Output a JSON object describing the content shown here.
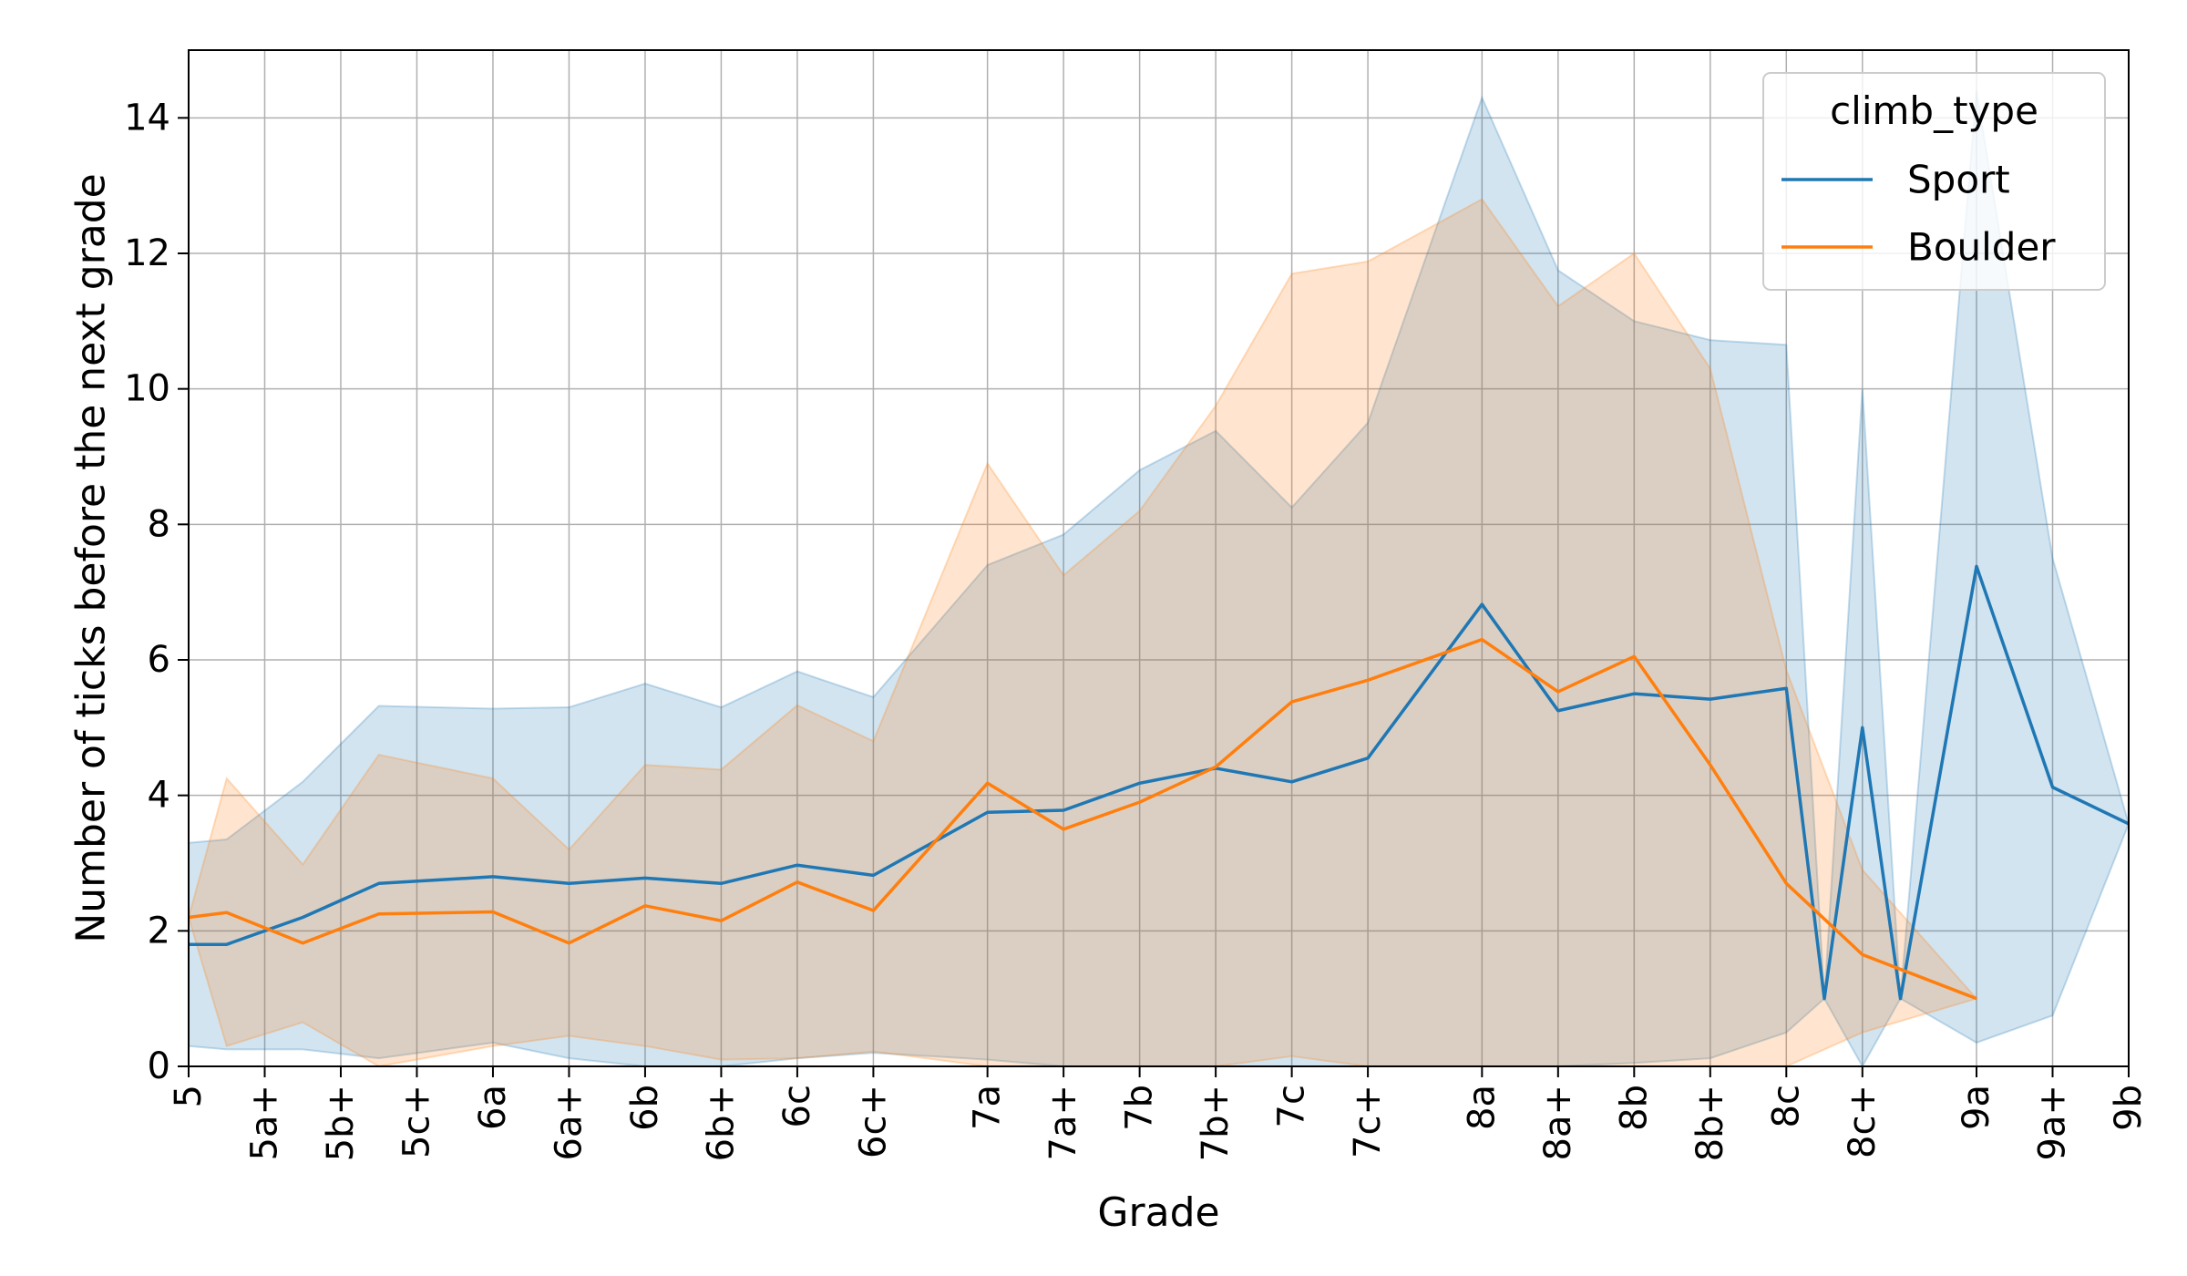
{
  "chart_data": {
    "type": "line",
    "xlabel": "Grade",
    "ylabel": "Number of ticks before the next grade",
    "ylim": [
      0,
      15
    ],
    "y_ticks": [
      0,
      2,
      4,
      6,
      8,
      10,
      12,
      14
    ],
    "grid": true,
    "legend": {
      "title": "climb_type",
      "position": "top-right"
    },
    "x_tick_labels": [
      "5",
      "5a+",
      "5b+",
      "5c+",
      "6a",
      "6a+",
      "6b",
      "6b+",
      "6c",
      "6c+",
      "7a",
      "7a+",
      "7b",
      "7b+",
      "7c",
      "7c+",
      "8a",
      "8a+",
      "8b",
      "8b+",
      "8c",
      "8c+",
      "9a",
      "9a+",
      "9b"
    ],
    "x_tick_values": [
      0,
      1,
      2,
      3,
      4,
      5,
      6,
      7,
      8,
      9,
      10.5,
      11.5,
      12.5,
      13.5,
      14.5,
      15.5,
      17,
      18,
      19,
      20,
      21,
      22,
      23.5,
      24.5,
      25.5
    ],
    "xlim": [
      0,
      25.5
    ],
    "series": [
      {
        "name": "Sport",
        "color": "#1f77b4",
        "band_color": "#1f77b4",
        "points": [
          {
            "x": 0,
            "y": 1.8,
            "lo": 0.3,
            "hi": 3.3
          },
          {
            "x": 0.5,
            "y": 1.8,
            "lo": 0.25,
            "hi": 3.35
          },
          {
            "x": 1.5,
            "y": 2.2,
            "lo": 0.25,
            "hi": 4.2
          },
          {
            "x": 2.5,
            "y": 2.7,
            "lo": 0.12,
            "hi": 5.32
          },
          {
            "x": 4,
            "y": 2.8,
            "lo": 0.35,
            "hi": 5.28
          },
          {
            "x": 5,
            "y": 2.7,
            "lo": 0.12,
            "hi": 5.3
          },
          {
            "x": 6,
            "y": 2.78,
            "lo": 0.0,
            "hi": 5.65
          },
          {
            "x": 7,
            "y": 2.7,
            "lo": 0.0,
            "hi": 5.3
          },
          {
            "x": 8,
            "y": 2.97,
            "lo": 0.12,
            "hi": 5.83
          },
          {
            "x": 9,
            "y": 2.82,
            "lo": 0.2,
            "hi": 5.45
          },
          {
            "x": 10.5,
            "y": 3.75,
            "lo": 0.1,
            "hi": 7.4
          },
          {
            "x": 11.5,
            "y": 3.78,
            "lo": 0.0,
            "hi": 7.85
          },
          {
            "x": 12.5,
            "y": 4.18,
            "lo": 0.0,
            "hi": 8.8
          },
          {
            "x": 13.5,
            "y": 4.4,
            "lo": 0.0,
            "hi": 9.38
          },
          {
            "x": 14.5,
            "y": 4.2,
            "lo": 0.0,
            "hi": 8.25
          },
          {
            "x": 15.5,
            "y": 4.55,
            "lo": 0.0,
            "hi": 9.5
          },
          {
            "x": 17,
            "y": 6.82,
            "lo": 0.0,
            "hi": 14.3
          },
          {
            "x": 18,
            "y": 5.25,
            "lo": 0.0,
            "hi": 11.75
          },
          {
            "x": 19,
            "y": 5.5,
            "lo": 0.05,
            "hi": 11.0
          },
          {
            "x": 20,
            "y": 5.42,
            "lo": 0.12,
            "hi": 10.72
          },
          {
            "x": 21,
            "y": 5.58,
            "lo": 0.5,
            "hi": 10.65
          },
          {
            "x": 21.5,
            "y": 1.0,
            "lo": 1.0,
            "hi": 1.0
          },
          {
            "x": 22,
            "y": 5.0,
            "lo": 0.0,
            "hi": 10.0
          },
          {
            "x": 22.5,
            "y": 1.0,
            "lo": 1.0,
            "hi": 1.0
          },
          {
            "x": 23.5,
            "y": 7.38,
            "lo": 0.35,
            "hi": 14.4
          },
          {
            "x": 24.5,
            "y": 4.12,
            "lo": 0.75,
            "hi": 7.5
          },
          {
            "x": 25.5,
            "y": 3.58,
            "lo": 3.58,
            "hi": 3.58
          }
        ]
      },
      {
        "name": "Boulder",
        "color": "#ff7f0e",
        "band_color": "#ff7f0e",
        "points": [
          {
            "x": 0,
            "y": 2.2,
            "lo": 2.2,
            "hi": 2.2
          },
          {
            "x": 0.5,
            "y": 2.27,
            "lo": 0.3,
            "hi": 4.25
          },
          {
            "x": 1.5,
            "y": 1.82,
            "lo": 0.65,
            "hi": 2.98
          },
          {
            "x": 2.5,
            "y": 2.25,
            "lo": 0.0,
            "hi": 4.6
          },
          {
            "x": 4,
            "y": 2.28,
            "lo": 0.3,
            "hi": 4.25
          },
          {
            "x": 5,
            "y": 1.82,
            "lo": 0.45,
            "hi": 3.2
          },
          {
            "x": 6,
            "y": 2.37,
            "lo": 0.3,
            "hi": 4.45
          },
          {
            "x": 7,
            "y": 2.15,
            "lo": 0.1,
            "hi": 4.38
          },
          {
            "x": 8,
            "y": 2.72,
            "lo": 0.12,
            "hi": 5.33
          },
          {
            "x": 9,
            "y": 2.3,
            "lo": 0.22,
            "hi": 4.8
          },
          {
            "x": 10.5,
            "y": 4.18,
            "lo": 0.0,
            "hi": 8.9
          },
          {
            "x": 11.5,
            "y": 3.5,
            "lo": 0.0,
            "hi": 7.25
          },
          {
            "x": 12.5,
            "y": 3.9,
            "lo": 0.0,
            "hi": 8.2
          },
          {
            "x": 13.5,
            "y": 4.42,
            "lo": 0.0,
            "hi": 9.75
          },
          {
            "x": 14.5,
            "y": 5.38,
            "lo": 0.15,
            "hi": 11.7
          },
          {
            "x": 15.5,
            "y": 5.7,
            "lo": 0.0,
            "hi": 11.88
          },
          {
            "x": 17,
            "y": 6.3,
            "lo": 0.0,
            "hi": 12.8
          },
          {
            "x": 18,
            "y": 5.53,
            "lo": 0.0,
            "hi": 11.22
          },
          {
            "x": 19,
            "y": 6.05,
            "lo": 0.0,
            "hi": 12.0
          },
          {
            "x": 20,
            "y": 4.45,
            "lo": 0.0,
            "hi": 10.3
          },
          {
            "x": 21,
            "y": 2.7,
            "lo": 0.0,
            "hi": 5.85
          },
          {
            "x": 22,
            "y": 1.65,
            "lo": 0.5,
            "hi": 2.9
          },
          {
            "x": 23.5,
            "y": 1.0,
            "lo": 1.0,
            "hi": 1.0
          }
        ]
      }
    ]
  }
}
